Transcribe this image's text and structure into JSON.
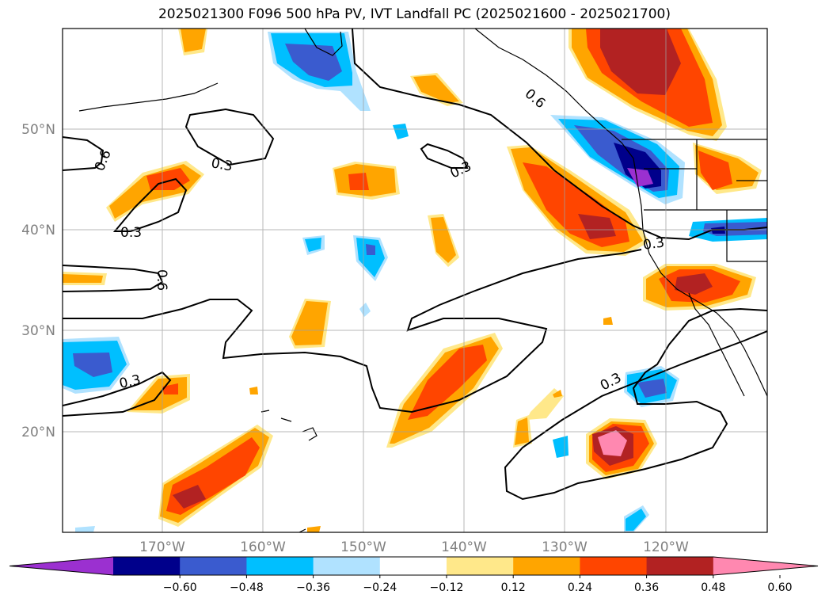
{
  "title": "2025021300 F096 500 hPa PV, IVT Landfall PC (2025021600 - 2025021700)",
  "lat_labels": [
    "50°N",
    "40°N",
    "30°N",
    "20°N"
  ],
  "lon_labels": [
    "170°W",
    "160°W",
    "150°W",
    "140°W",
    "130°W",
    "120°W"
  ],
  "contour_labels": [
    "0.3",
    "0.3",
    "0.3",
    "0.3",
    "0.6",
    "0.6",
    "0.6",
    "0.3",
    "0.3"
  ],
  "colorbar": {
    "ticks": [
      "−0.60",
      "−0.48",
      "−0.36",
      "−0.24",
      "−0.12",
      "0.12",
      "0.24",
      "0.36",
      "0.48",
      "0.60"
    ],
    "colors": [
      "#9b30d0",
      "#00008b",
      "#3a5bcf",
      "#00bfff",
      "#b0e2ff",
      "#ffffff",
      "#ffe88a",
      "#ffa500",
      "#ff4500",
      "#b22222",
      "#ff88b0"
    ]
  }
}
